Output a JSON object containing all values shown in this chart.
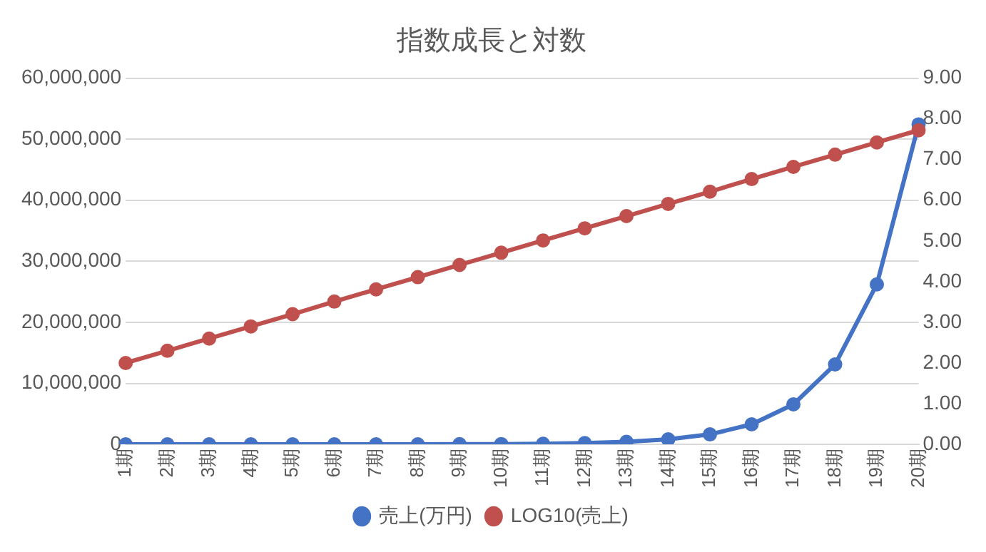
{
  "chart_data": {
    "type": "line",
    "title": "指数成長と対数",
    "categories": [
      "1期",
      "2期",
      "3期",
      "4期",
      "5期",
      "6期",
      "7期",
      "8期",
      "9期",
      "10期",
      "11期",
      "12期",
      "13期",
      "14期",
      "15期",
      "16期",
      "17期",
      "18期",
      "19期",
      "20期"
    ],
    "series": [
      {
        "name": "売上(万円)",
        "color": "#4472c4",
        "values": [
          100,
          200,
          400,
          800,
          1600,
          3200,
          6400,
          12800,
          25600,
          51200,
          102400,
          204800,
          409600,
          819200,
          1638400,
          3276800,
          6553600,
          13107200,
          26214400,
          52428800
        ]
      },
      {
        "name": "LOG10(売上)",
        "color": "#c0504d",
        "axis": "y2",
        "values": [
          2.0,
          2.3,
          2.6,
          2.9,
          3.2,
          3.51,
          3.81,
          4.11,
          4.41,
          4.71,
          5.01,
          5.31,
          5.61,
          5.91,
          6.21,
          6.52,
          6.82,
          7.12,
          7.42,
          7.72
        ]
      }
    ],
    "ylim": [
      0,
      60000000
    ],
    "yticks": [
      {
        "value": 0,
        "label": "0"
      },
      {
        "value": 10000000,
        "label": "10,000,000"
      },
      {
        "value": 20000000,
        "label": "20,000,000"
      },
      {
        "value": 30000000,
        "label": "30,000,000"
      },
      {
        "value": 40000000,
        "label": "40,000,000"
      },
      {
        "value": 50000000,
        "label": "50,000,000"
      },
      {
        "value": 60000000,
        "label": "60,000,000"
      }
    ],
    "y2lim": [
      0,
      9
    ],
    "y2ticks": [
      {
        "value": 0,
        "label": "0.00"
      },
      {
        "value": 1,
        "label": "1.00"
      },
      {
        "value": 2,
        "label": "2.00"
      },
      {
        "value": 3,
        "label": "3.00"
      },
      {
        "value": 4,
        "label": "4.00"
      },
      {
        "value": 5,
        "label": "5.00"
      },
      {
        "value": 6,
        "label": "6.00"
      },
      {
        "value": 7,
        "label": "7.00"
      },
      {
        "value": 8,
        "label": "8.00"
      },
      {
        "value": 9,
        "label": "9.00"
      }
    ],
    "grid": "y",
    "legend": "bottom",
    "marker": "circle",
    "line_style": "solid"
  }
}
